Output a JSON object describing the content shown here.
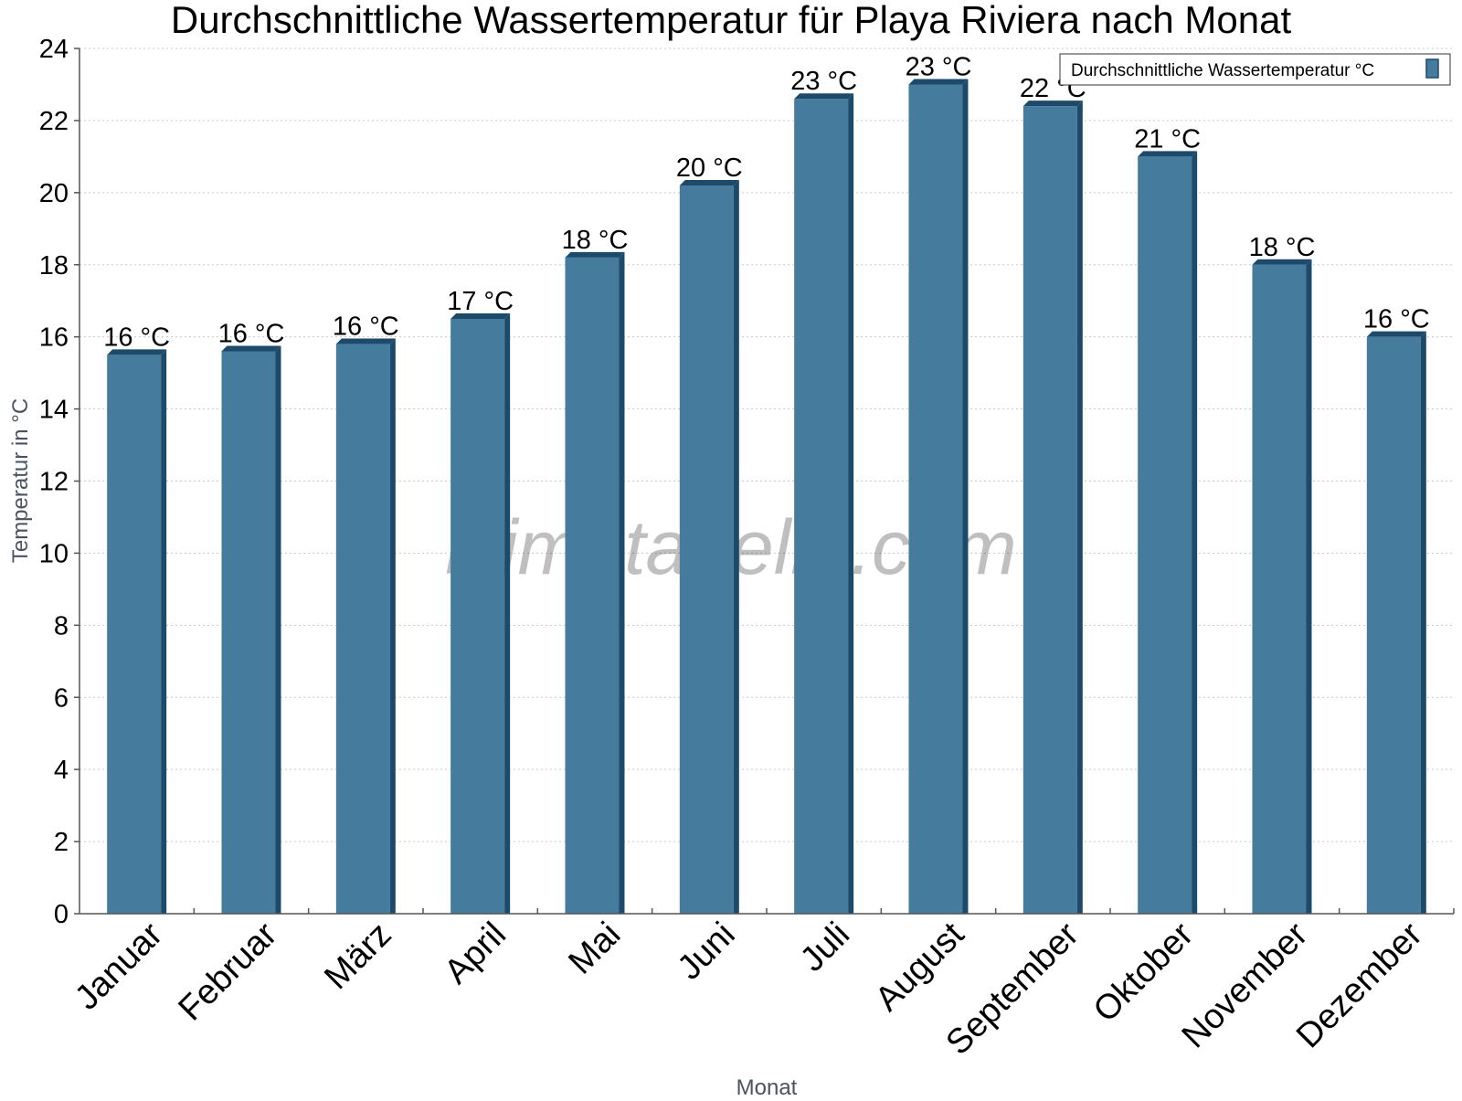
{
  "chart_data": {
    "type": "bar",
    "title": "Durchschnittliche Wassertemperatur für Playa Riviera nach Monat",
    "xlabel": "Monat",
    "ylabel": "Temperatur in °C",
    "ylim": [
      0,
      24
    ],
    "yticks": [
      0,
      2,
      4,
      6,
      8,
      10,
      12,
      14,
      16,
      18,
      20,
      22,
      24
    ],
    "grid": true,
    "legend_position": "top-right",
    "watermark": "klimatabelle.com",
    "categories": [
      "Januar",
      "Februar",
      "März",
      "April",
      "Mai",
      "Juni",
      "Juli",
      "August",
      "September",
      "Oktober",
      "November",
      "Dezember"
    ],
    "series": [
      {
        "name": "Durchschnittliche Wassertemperatur °C",
        "values": [
          15.5,
          15.6,
          15.8,
          16.5,
          18.2,
          20.2,
          22.6,
          23.0,
          22.4,
          21.0,
          18.0,
          16.0
        ],
        "labels": [
          "16 °C",
          "16 °C",
          "16 °C",
          "17 °C",
          "18 °C",
          "20 °C",
          "23 °C",
          "23 °C",
          "22 °C",
          "21 °C",
          "18 °C",
          "16 °C"
        ],
        "color": "#457b9d",
        "shade_color": "#1d4a6b"
      }
    ]
  }
}
